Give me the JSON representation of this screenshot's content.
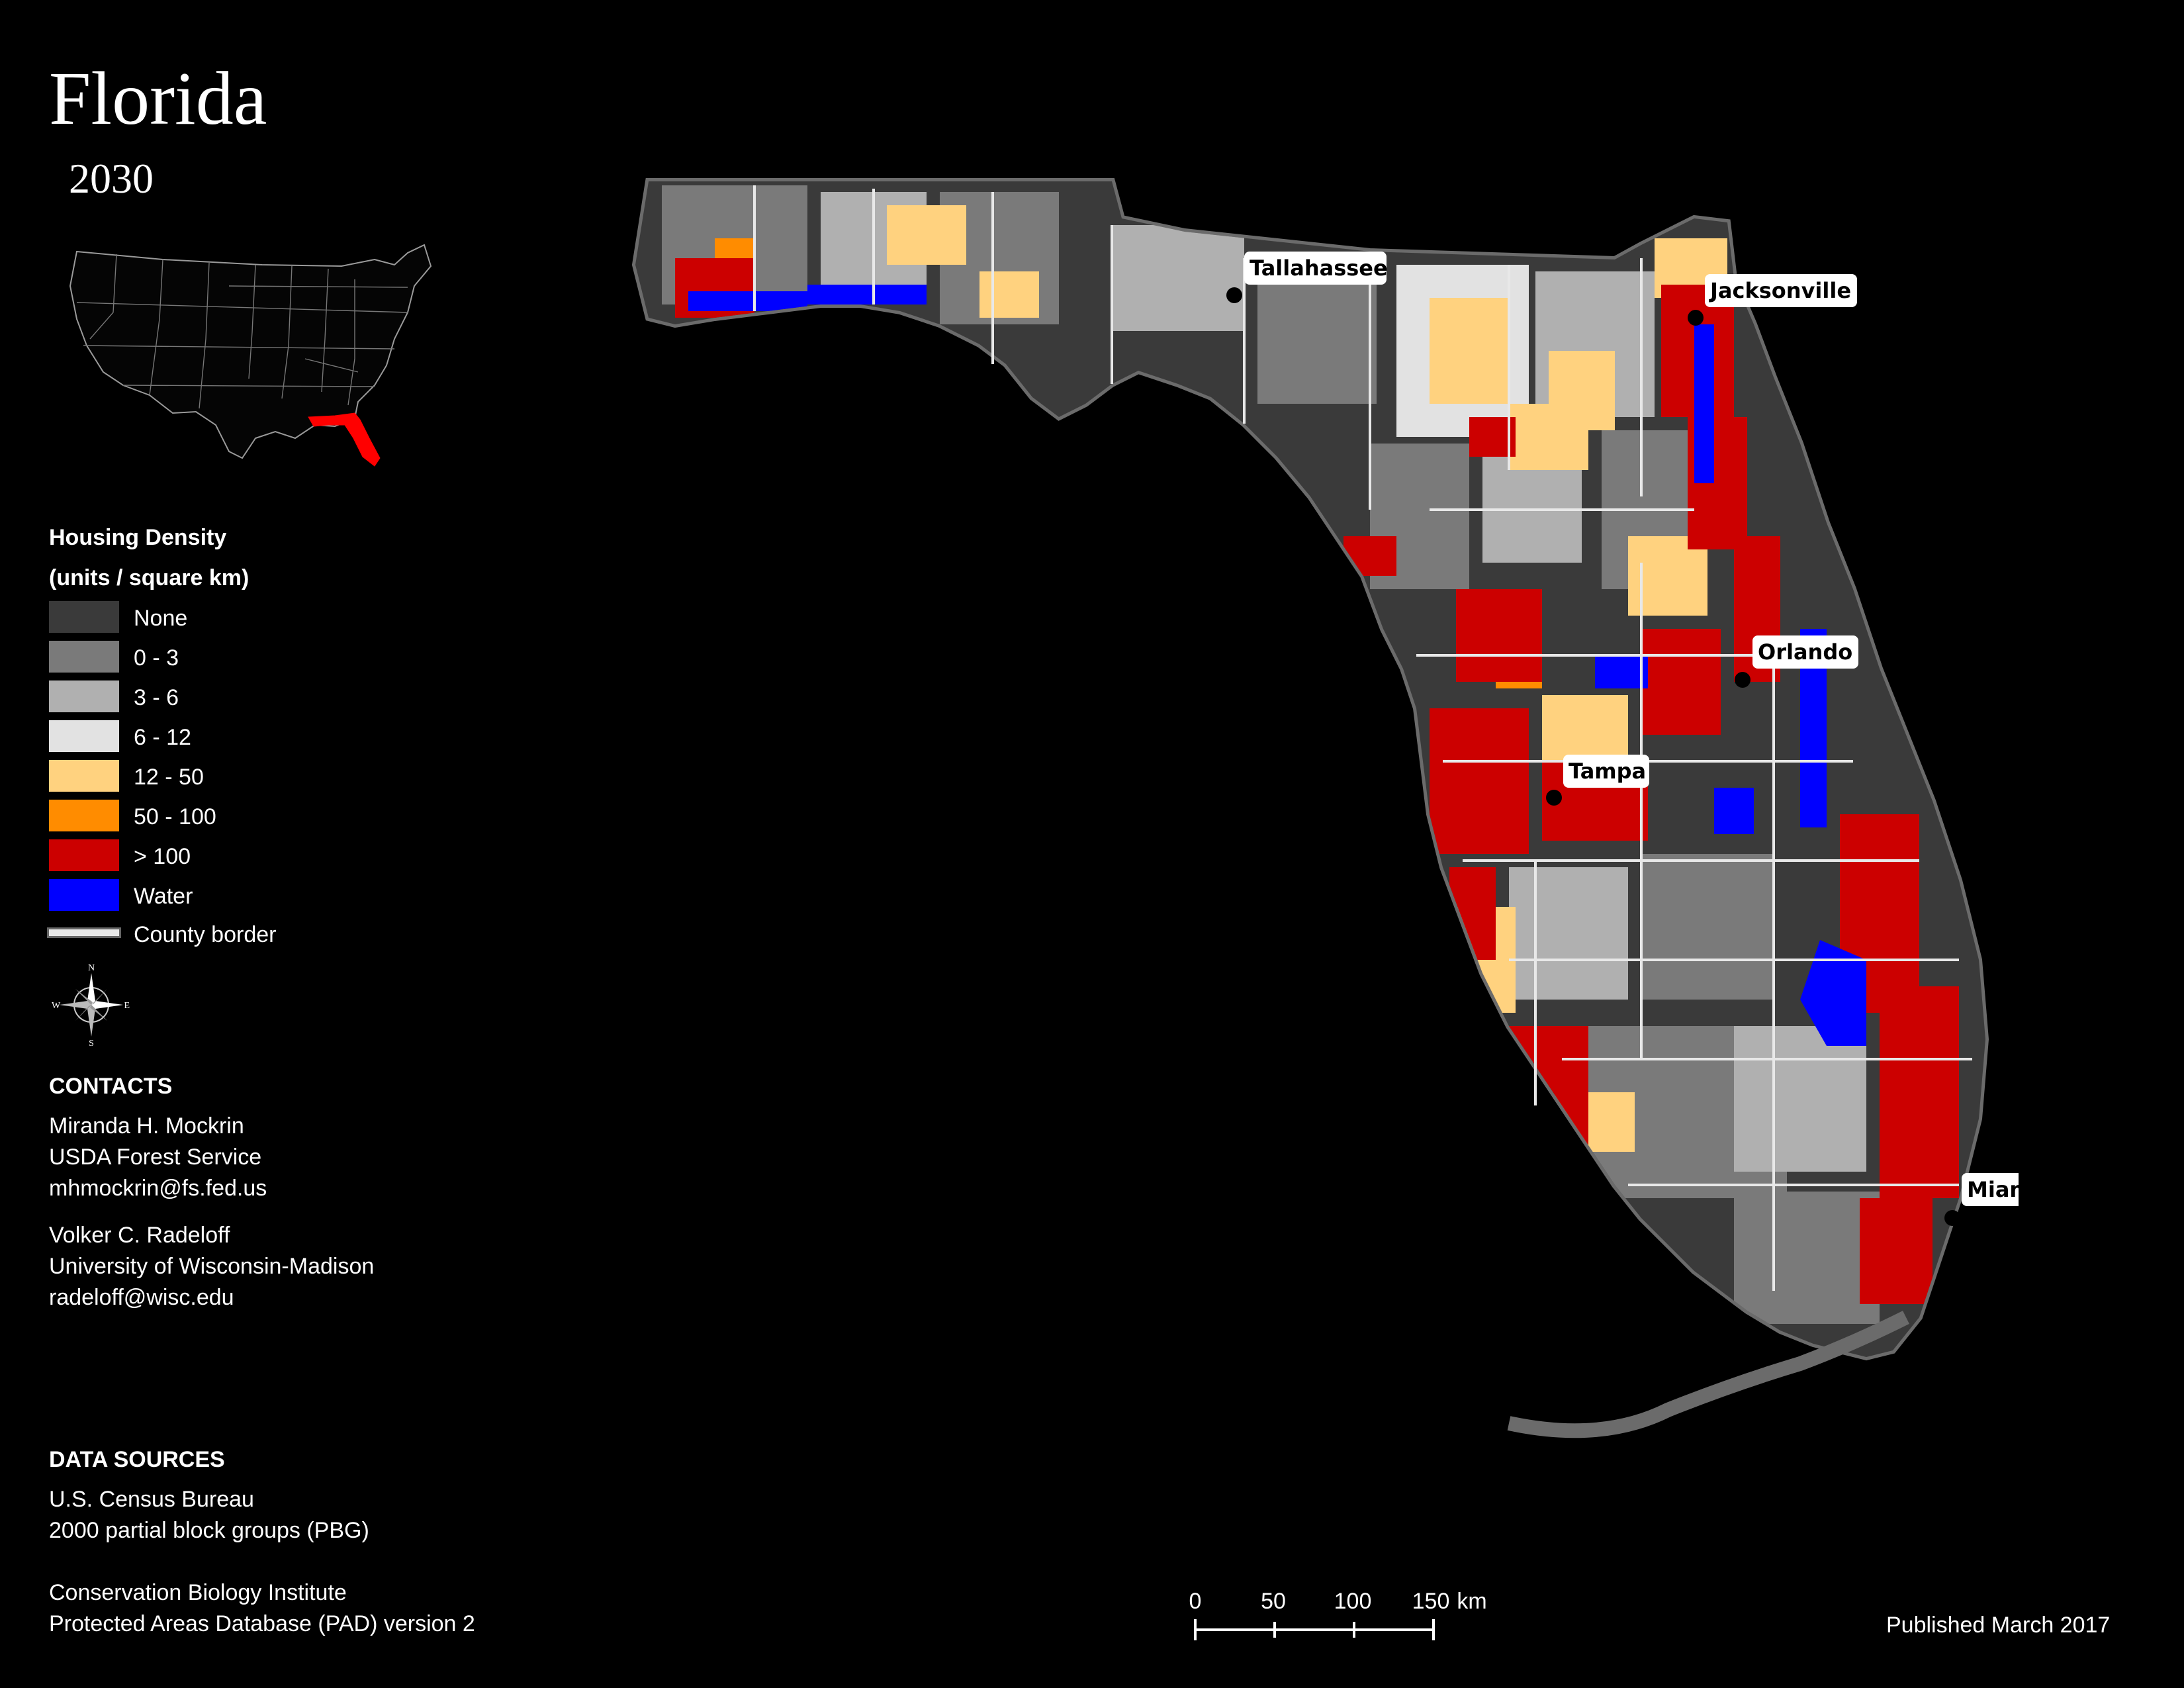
{
  "title": "Florida",
  "subtitle": "2030",
  "legend": {
    "title_line1": "Housing Density",
    "title_line2": "(units / square km)",
    "items": [
      {
        "label": "None",
        "color": "#3a3a3a"
      },
      {
        "label": "0 - 3",
        "color": "#7a7a7a"
      },
      {
        "label": "3 - 6",
        "color": "#b0b0b0"
      },
      {
        "label": "6 - 12",
        "color": "#e2e2e2"
      },
      {
        "label": "12 - 50",
        "color": "#ffd27f"
      },
      {
        "label": "50 - 100",
        "color": "#ff8c00"
      },
      {
        "label": "> 100",
        "color": "#cc0000"
      },
      {
        "label": "Water",
        "color": "#0000ff"
      }
    ],
    "county_border_label": "County border"
  },
  "compass": {
    "n": "N",
    "s": "S",
    "e": "E",
    "w": "W"
  },
  "inset": {
    "highlight_state": "Florida",
    "highlight_color": "#ff0000"
  },
  "contacts": {
    "heading": "CONTACTS",
    "people": [
      {
        "name": "Miranda H. Mockrin",
        "org": "USDA Forest Service",
        "email": "mhmockrin@fs.fed.us"
      },
      {
        "name": "Volker C. Radeloff",
        "org": "University of Wisconsin-Madison",
        "email": "radeloff@wisc.edu"
      }
    ]
  },
  "data_sources": {
    "heading": "DATA SOURCES",
    "lines": [
      "U.S. Census Bureau",
      "2000 partial block groups (PBG)",
      "Conservation Biology Institute",
      "Protected Areas Database (PAD) version 2"
    ]
  },
  "cities": [
    {
      "name": "Tallahassee"
    },
    {
      "name": "Jacksonville"
    },
    {
      "name": "Orlando"
    },
    {
      "name": "Tampa"
    },
    {
      "name": "Miami"
    }
  ],
  "scale_bar": {
    "ticks": [
      "0",
      "50",
      "100",
      "150"
    ],
    "unit": "km"
  },
  "published": "Published March 2017"
}
